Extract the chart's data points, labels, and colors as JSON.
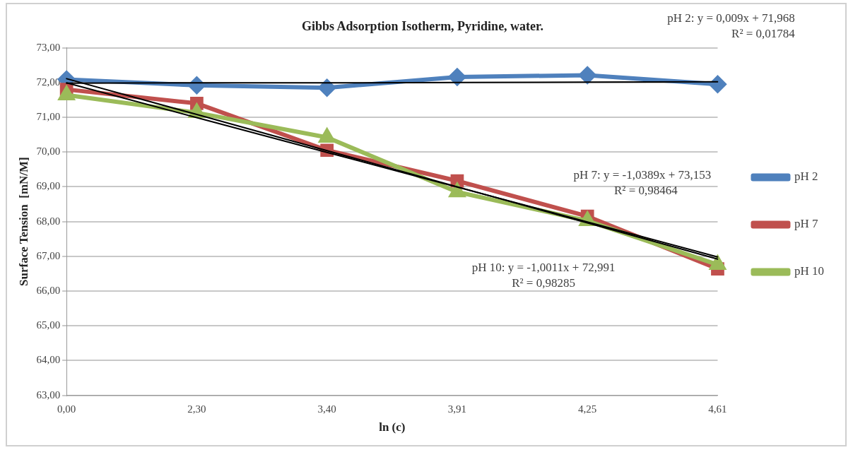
{
  "chart_data": {
    "type": "line",
    "title": "Gibbs Adsorption Isotherm, Pyridine, water.",
    "xlabel": "ln (c)",
    "ylabel": "Surface Tension  [mN/M]",
    "categories": [
      "0,00",
      "2,30",
      "3,40",
      "3,91",
      "4,25",
      "4,61"
    ],
    "series": [
      {
        "name": "pH 2",
        "color": "#4f81bd",
        "marker": "diamond",
        "values": [
          72.09,
          71.92,
          71.85,
          72.16,
          72.21,
          71.95
        ]
      },
      {
        "name": "pH 7",
        "color": "#c0504d",
        "marker": "square",
        "values": [
          71.8,
          71.4,
          70.05,
          69.17,
          68.15,
          66.64
        ]
      },
      {
        "name": "pH 10",
        "color": "#9bbb59",
        "marker": "triangle",
        "values": [
          71.64,
          71.13,
          70.42,
          68.85,
          68.02,
          66.76
        ]
      },
      {
        "type": "line",
        "color": "#000000",
        "marker": "none",
        "values": [
          71.98,
          71.99,
          71.99,
          72.0,
          72.01,
          72.02
        ]
      },
      {
        "type": "line",
        "color": "#000000",
        "marker": "none",
        "values": [
          72.11,
          71.08,
          70.04,
          69.0,
          67.96,
          66.92
        ]
      },
      {
        "type": "line",
        "color": "#000000",
        "marker": "none",
        "values": [
          71.99,
          70.99,
          69.99,
          68.99,
          67.99,
          66.98
        ]
      }
    ],
    "ylim": [
      63,
      73
    ],
    "yticks": [
      {
        "value": 63,
        "label": "63,00"
      },
      {
        "value": 64,
        "label": "64,00"
      },
      {
        "value": 65,
        "label": "65,00"
      },
      {
        "value": 66,
        "label": "66,00"
      },
      {
        "value": 67,
        "label": "67,00"
      },
      {
        "value": 68,
        "label": "68,00"
      },
      {
        "value": 69,
        "label": "69,00"
      },
      {
        "value": 70,
        "label": "70,00"
      },
      {
        "value": 71,
        "label": "71,00"
      },
      {
        "value": 72,
        "label": "72,00"
      },
      {
        "value": 73,
        "label": "73,00"
      }
    ],
    "grid": "y",
    "legend": "right",
    "annotations": [
      "pH 2: y = 0,009x + 71,968",
      "R² = 0,01784",
      "pH 7: y = -1,0389x + 73,153",
      "R² = 0,98464",
      "pH 10: y = -1,0011x + 72,991",
      "R² = 0,98285"
    ]
  }
}
